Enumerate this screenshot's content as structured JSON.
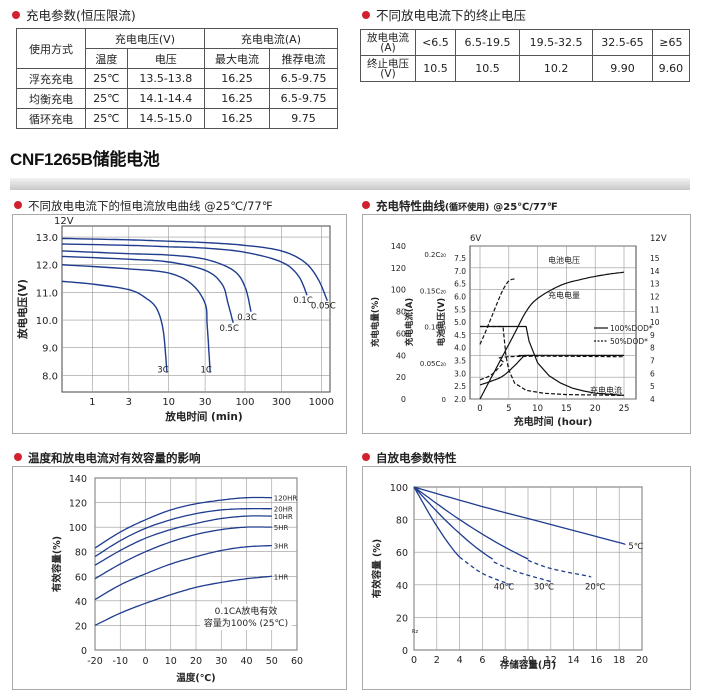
{
  "sections": {
    "charge_params_title": "充电参数(恒压限流)",
    "end_voltage_title": "不同放电电流下的终止电压",
    "discharge_title": "不同放电电流下的恒电流放电曲线 @25℃/77℉",
    "charge_char_title": "充电特性曲线",
    "charge_char_note": "(循环使用)",
    "charge_char_cond": "@25℃/77℉",
    "temp_title": "温度和放电电流对有效容量的影响",
    "self_discharge_title": "自放电参数特性"
  },
  "product_name": "CNF1265B储能电池",
  "charge_table": {
    "h_mode": "使用方式",
    "h_voltage": "充电电压(V)",
    "h_current": "充电电流(A)",
    "h_temp": "温度",
    "h_volt": "电压",
    "h_max": "最大电流",
    "h_rec": "推荐电流",
    "rows": [
      {
        "mode": "浮充充电",
        "temp": "25℃",
        "volt": "13.5-13.8",
        "max": "16.25",
        "rec": "6.5-9.75"
      },
      {
        "mode": "均衡充电",
        "temp": "25℃",
        "volt": "14.1-14.4",
        "max": "16.25",
        "rec": "6.5-9.75"
      },
      {
        "mode": "循环充电",
        "temp": "25℃",
        "volt": "14.5-15.0",
        "max": "16.25",
        "rec": "9.75"
      }
    ]
  },
  "end_voltage_table": {
    "row1_label_a": "放电电流",
    "row1_label_b": "(A)",
    "row2_label_a": "终止电压",
    "row2_label_b": "(V)",
    "currents": [
      "<6.5",
      "6.5-19.5",
      "19.5-32.5",
      "32.5-65",
      "≥65"
    ],
    "voltages": [
      "10.5",
      "10.5",
      "10.2",
      "9.90",
      "9.60"
    ]
  },
  "chart_data": [
    {
      "type": "line",
      "id": "discharge",
      "ylabel": "放电电压(V)",
      "xlabel": "放电时间 (min)",
      "x_scale": "log",
      "top_label": "12V",
      "xticks": [
        "1",
        "3",
        "10",
        "30",
        "100",
        "300",
        "1000"
      ],
      "yticks": [
        "8.0",
        "9.0",
        "10.0",
        "11.0",
        "12.0",
        "13.0"
      ],
      "ylim": [
        7.4,
        13.4
      ],
      "series": [
        {
          "name": "3C",
          "t": [
            0.4,
            1,
            3,
            5,
            7,
            8.5,
            9.5
          ],
          "v": [
            11.4,
            11.3,
            11.1,
            10.8,
            10.4,
            9.6,
            8.1
          ]
        },
        {
          "name": "1C",
          "t": [
            0.4,
            3,
            10,
            20,
            30,
            32,
            35
          ],
          "v": [
            12.0,
            11.85,
            11.7,
            11.3,
            10.6,
            9.8,
            8.1
          ]
        },
        {
          "name": "0.5C",
          "t": [
            0.4,
            3,
            10,
            30,
            50,
            60,
            70
          ],
          "v": [
            12.3,
            12.2,
            12.1,
            11.8,
            11.3,
            10.6,
            9.9
          ]
        },
        {
          "name": "0.3C",
          "t": [
            0.4,
            3,
            10,
            30,
            70,
            100,
            120
          ],
          "v": [
            12.5,
            12.4,
            12.35,
            12.2,
            11.8,
            11.2,
            10.3
          ]
        },
        {
          "name": "0.1C",
          "t": [
            0.4,
            3,
            10,
            30,
            100,
            300,
            500,
            650
          ],
          "v": [
            12.75,
            12.7,
            12.65,
            12.6,
            12.45,
            12.1,
            11.6,
            10.9
          ]
        },
        {
          "name": "0.05C",
          "t": [
            0.4,
            3,
            10,
            30,
            100,
            300,
            600,
            900,
            1200
          ],
          "v": [
            12.95,
            12.9,
            12.85,
            12.8,
            12.7,
            12.5,
            12.1,
            11.5,
            10.7
          ]
        }
      ]
    },
    {
      "type": "line",
      "id": "charge_characteristics",
      "xlabel": "充电时间 (hour)",
      "ylabel_capacity": "充电电量(%)",
      "ylabel_current": "充电电流(A)",
      "ylabel_voltage": "电池电压(V)",
      "top_left_label": "6V",
      "top_right_label": "12V",
      "xticks": [
        "0",
        "5",
        "10",
        "15",
        "20",
        "25"
      ],
      "left_ticks": [
        "0",
        "20",
        "40",
        "60",
        "80",
        "100",
        "120",
        "140"
      ],
      "current_ticks": [
        "0",
        "0.05C₂₀",
        "0.1C₂₀",
        "0.15C₂₀",
        "0.2C₂₀"
      ],
      "voltage_left_ticks": [
        "2.0",
        "2.5",
        "3.0",
        "3.5",
        "4.0",
        "4.5",
        "5.0",
        "5.5",
        "6.0",
        "6.5",
        "7.0",
        "7.5"
      ],
      "voltage_right_ticks": [
        "4",
        "5",
        "6",
        "7",
        "8",
        "9",
        "10",
        "11",
        "12",
        "13",
        "14",
        "15"
      ],
      "annotations": [
        "电池电压",
        "充电电量",
        "充电电流"
      ],
      "legend": [
        "100%DOD*",
        "50%DOD*"
      ],
      "series": [
        {
          "name": "电池电压 100%DOD",
          "style": "solid",
          "x": [
            0,
            2,
            4,
            6,
            7.5,
            8,
            25
          ],
          "y": [
            2.55,
            2.7,
            2.9,
            3.3,
            3.65,
            3.7,
            3.7
          ]
        },
        {
          "name": "电池电压 50%DOD",
          "style": "dashed",
          "x": [
            0,
            2,
            4,
            5,
            25
          ],
          "y": [
            2.75,
            2.95,
            3.4,
            3.65,
            3.65
          ]
        },
        {
          "name": "充电电量 100%DOD",
          "style": "solid",
          "x": [
            0,
            2,
            4,
            6,
            8,
            10,
            14,
            18,
            22,
            25
          ],
          "y": [
            0,
            20,
            40,
            60,
            80,
            92,
            104,
            110,
            114,
            116
          ]
        },
        {
          "name": "充电电量 50%DOD",
          "style": "dashed",
          "x": [
            0,
            1,
            2,
            3,
            4,
            5,
            6
          ],
          "y": [
            50,
            62,
            75,
            88,
            100,
            108,
            110
          ]
        },
        {
          "name": "充电电流 100%DOD",
          "style": "solid",
          "x": [
            0,
            8,
            8.5,
            10,
            12,
            14,
            16,
            18,
            20,
            25
          ],
          "y": [
            0.1,
            0.1,
            0.08,
            0.05,
            0.032,
            0.022,
            0.015,
            0.011,
            0.008,
            0.005
          ]
        },
        {
          "name": "充电电流 50%DOD",
          "style": "dashed",
          "x": [
            0,
            4,
            4.5,
            5,
            6,
            8,
            11,
            15,
            25
          ],
          "y": [
            0.1,
            0.1,
            0.06,
            0.04,
            0.022,
            0.012,
            0.008,
            0.006,
            0.005
          ]
        }
      ]
    },
    {
      "type": "line",
      "id": "temperature_capacity",
      "xlabel": "温度(℃)",
      "ylabel": "有效容量(%)",
      "xlim": [
        -20,
        60
      ],
      "ylim": [
        0,
        140
      ],
      "xticks": [
        "-20",
        "-10",
        "0",
        "10",
        "20",
        "30",
        "40",
        "50",
        "60"
      ],
      "yticks": [
        "0",
        "20",
        "40",
        "60",
        "80",
        "100",
        "120",
        "140"
      ],
      "note_line1": "0.1CA放电有效",
      "note_line2": "容量为100% (25℃)",
      "series": [
        {
          "name": "120HR",
          "x": [
            -20,
            -10,
            0,
            10,
            20,
            30,
            40,
            50
          ],
          "y": [
            83,
            96,
            106,
            114,
            119,
            122,
            124,
            124
          ]
        },
        {
          "name": "20HR",
          "x": [
            -20,
            -10,
            0,
            10,
            20,
            30,
            40,
            50
          ],
          "y": [
            76,
            89,
            99,
            106,
            111,
            114,
            115,
            115
          ]
        },
        {
          "name": "10HR",
          "x": [
            -20,
            -10,
            0,
            10,
            20,
            30,
            40,
            50
          ],
          "y": [
            69,
            81,
            91,
            98,
            103,
            107,
            109,
            109
          ]
        },
        {
          "name": "5HR",
          "x": [
            -20,
            -10,
            0,
            10,
            20,
            30,
            40,
            50
          ],
          "y": [
            58,
            70,
            80,
            88,
            94,
            98,
            100,
            100
          ]
        },
        {
          "name": "3HR",
          "x": [
            -20,
            -10,
            0,
            10,
            20,
            30,
            40,
            50
          ],
          "y": [
            41,
            53,
            62,
            70,
            76,
            81,
            84,
            85
          ]
        },
        {
          "name": "1HR",
          "x": [
            -20,
            -10,
            0,
            10,
            20,
            30,
            40,
            50
          ],
          "y": [
            20,
            30,
            38,
            45,
            51,
            55,
            58,
            60
          ]
        }
      ]
    },
    {
      "type": "line",
      "id": "self_discharge",
      "xlabel": "存储容量(月)",
      "ylabel": "有效容量 (%)",
      "xlim": [
        0,
        20
      ],
      "ylim": [
        0,
        100
      ],
      "xticks": [
        "0",
        "2",
        "4",
        "6",
        "8",
        "10",
        "12",
        "14",
        "16",
        "18",
        "20"
      ],
      "yticks": [
        "0",
        "20",
        "40",
        "60",
        "80",
        "100"
      ],
      "series": [
        {
          "name": "5℃",
          "x": [
            0,
            6,
            12,
            18.5
          ],
          "y": [
            100,
            88,
            77,
            65
          ]
        },
        {
          "name": "30℃",
          "x": [
            0,
            3,
            6,
            9,
            12
          ],
          "y": [
            100,
            78,
            60,
            48,
            42
          ]
        },
        {
          "name": "20℃",
          "x": [
            0,
            4,
            8,
            12,
            15.5
          ],
          "y": [
            100,
            80,
            63,
            50,
            45
          ]
        },
        {
          "name": "40℃",
          "x": [
            0,
            2,
            4,
            6,
            8.5
          ],
          "y": [
            100,
            76,
            57,
            47,
            40
          ]
        }
      ],
      "dashed_tails": [
        {
          "x": [
            4,
            6,
            8.5
          ],
          "y": [
            57,
            47,
            40
          ]
        },
        {
          "x": [
            7,
            9,
            12
          ],
          "y": [
            54,
            48,
            42
          ]
        },
        {
          "x": [
            10,
            12,
            15.5
          ],
          "y": [
            55,
            50,
            45
          ]
        }
      ],
      "corner_label": "Rz"
    }
  ],
  "colors": {
    "accent_red": "#d1202e",
    "curve_blue": "#1f3d8f",
    "grid": "#999999"
  }
}
